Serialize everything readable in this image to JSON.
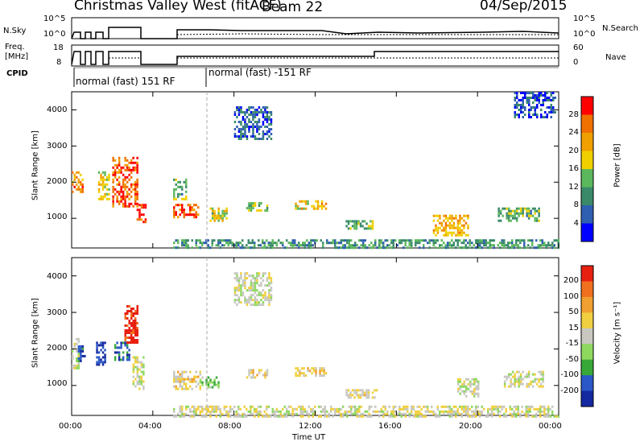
{
  "header": {
    "station": "Christmas Valley West (fitACF)",
    "beam": "Beam 22",
    "date": "04/Sep/2015"
  },
  "summary_panels": {
    "nsky_label": "N.Sky",
    "nsky_ticks": [
      "10^5",
      "10^0"
    ],
    "nsearch_label": "N.Search",
    "freq_label_line1": "Freq.",
    "freq_label_line2": "[MHz]",
    "freq_ticks": [
      "18",
      "8"
    ],
    "nave_label": "Nave",
    "nave_ticks": [
      "60",
      "0"
    ],
    "cpid_label": "CPID",
    "cpid_segments": [
      "normal (fast) 151 RF",
      "normal (fast) -151 RF"
    ]
  },
  "colors": {
    "power_scale": [
      "#0000ff",
      "#2f5fb0",
      "#3a8a6a",
      "#5cb85c",
      "#f0d000",
      "#f0a000",
      "#f07000",
      "#ff0000"
    ],
    "velocity_scale": [
      "#1428a0",
      "#2a58c8",
      "#38a838",
      "#8fd860",
      "#c8c8c0",
      "#f0d040",
      "#f0a030",
      "#f07020",
      "#e82010"
    ]
  },
  "chart_data": [
    {
      "type": "heatmap",
      "quantity": "power",
      "ylabel": "Slant Range [km]",
      "xlabel": "Time UT",
      "x_ticks": [
        "00:00",
        "04:00",
        "08:00",
        "12:00",
        "16:00",
        "20:00",
        "00:00"
      ],
      "y_ticks": [
        "1000",
        "2000",
        "3000",
        "4000"
      ],
      "ylim": [
        180,
        4500
      ],
      "xlim_hours": [
        0,
        24
      ],
      "colorbar_label": "Power [dB]",
      "colorbar_ticks": [
        "28",
        "24",
        "20",
        "16",
        "12",
        "8",
        "4"
      ],
      "colorbar_range": [
        0,
        30
      ],
      "regions": [
        {
          "t0": 0.0,
          "t1": 0.5,
          "r0": 1700,
          "r1": 2300,
          "value": 22
        },
        {
          "t0": 1.3,
          "t1": 1.8,
          "r0": 1500,
          "r1": 2300,
          "value": 18
        },
        {
          "t0": 2.0,
          "t1": 3.2,
          "r0": 1300,
          "r1": 2700,
          "value": 25
        },
        {
          "t0": 3.2,
          "t1": 3.6,
          "r0": 900,
          "r1": 1400,
          "value": 27
        },
        {
          "t0": 5.0,
          "t1": 6.2,
          "r0": 1000,
          "r1": 1400,
          "value": 26
        },
        {
          "t0": 5.0,
          "t1": 5.6,
          "r0": 1500,
          "r1": 2100,
          "value": 12
        },
        {
          "t0": 6.8,
          "t1": 7.6,
          "r0": 900,
          "r1": 1300,
          "value": 16
        },
        {
          "t0": 8.6,
          "t1": 9.6,
          "r0": 1200,
          "r1": 1450,
          "value": 14
        },
        {
          "t0": 11.0,
          "t1": 12.5,
          "r0": 1250,
          "r1": 1500,
          "value": 18
        },
        {
          "t0": 13.5,
          "t1": 14.8,
          "r0": 700,
          "r1": 950,
          "value": 12
        },
        {
          "t0": 17.8,
          "t1": 19.5,
          "r0": 500,
          "r1": 1100,
          "value": 20
        },
        {
          "t0": 21.0,
          "t1": 23.0,
          "r0": 900,
          "r1": 1300,
          "value": 12
        },
        {
          "t0": 5.0,
          "t1": 24.0,
          "r0": 180,
          "r1": 420,
          "value": 10
        },
        {
          "t0": 8.0,
          "t1": 9.8,
          "r0": 3200,
          "r1": 4100,
          "value": 6
        },
        {
          "t0": 21.8,
          "t1": 23.8,
          "r0": 3800,
          "r1": 4500,
          "value": 5
        }
      ]
    },
    {
      "type": "heatmap",
      "quantity": "velocity",
      "ylabel": "Slant Range [km]",
      "xlabel": "Time UT",
      "x_ticks": [
        "00:00",
        "04:00",
        "08:00",
        "12:00",
        "16:00",
        "20:00",
        "00:00"
      ],
      "y_ticks": [
        "1000",
        "2000",
        "3000",
        "4000"
      ],
      "ylim": [
        180,
        4500
      ],
      "xlim_hours": [
        0,
        24
      ],
      "colorbar_label": "Velocity [m s⁻¹]",
      "colorbar_ticks": [
        "200",
        "100",
        "50",
        "15",
        "-15",
        "-50",
        "-100",
        "-200"
      ],
      "colorbar_range": [
        -250,
        250
      ],
      "regions": [
        {
          "t0": 0.0,
          "t1": 0.3,
          "r0": 1500,
          "r1": 2300,
          "value": 0
        },
        {
          "t0": 0.3,
          "t1": 0.6,
          "r0": 1700,
          "r1": 2100,
          "value": -180
        },
        {
          "t0": 1.2,
          "t1": 1.6,
          "r0": 1600,
          "r1": 2200,
          "value": -200
        },
        {
          "t0": 2.1,
          "t1": 2.8,
          "r0": 1700,
          "r1": 2200,
          "value": -160
        },
        {
          "t0": 2.6,
          "t1": 3.2,
          "r0": 2200,
          "r1": 3200,
          "value": 220
        },
        {
          "t0": 3.0,
          "t1": 3.5,
          "r0": 900,
          "r1": 1800,
          "value": 0
        },
        {
          "t0": 5.0,
          "t1": 6.3,
          "r0": 900,
          "r1": 1400,
          "value": 40
        },
        {
          "t0": 6.3,
          "t1": 7.2,
          "r0": 950,
          "r1": 1250,
          "value": -80
        },
        {
          "t0": 8.6,
          "t1": 9.6,
          "r0": 1250,
          "r1": 1450,
          "value": 30
        },
        {
          "t0": 11.0,
          "t1": 12.5,
          "r0": 1250,
          "r1": 1500,
          "value": 45
        },
        {
          "t0": 13.5,
          "t1": 15.0,
          "r0": 650,
          "r1": 900,
          "value": 35
        },
        {
          "t0": 19.0,
          "t1": 20.0,
          "r0": 700,
          "r1": 1200,
          "value": 0
        },
        {
          "t0": 21.3,
          "t1": 23.2,
          "r0": 1000,
          "r1": 1400,
          "value": 0
        },
        {
          "t0": 5.0,
          "t1": 24.0,
          "r0": 180,
          "r1": 450,
          "value": 12
        },
        {
          "t0": 8.0,
          "t1": 9.8,
          "r0": 3200,
          "r1": 4100,
          "value": 0
        }
      ]
    }
  ]
}
